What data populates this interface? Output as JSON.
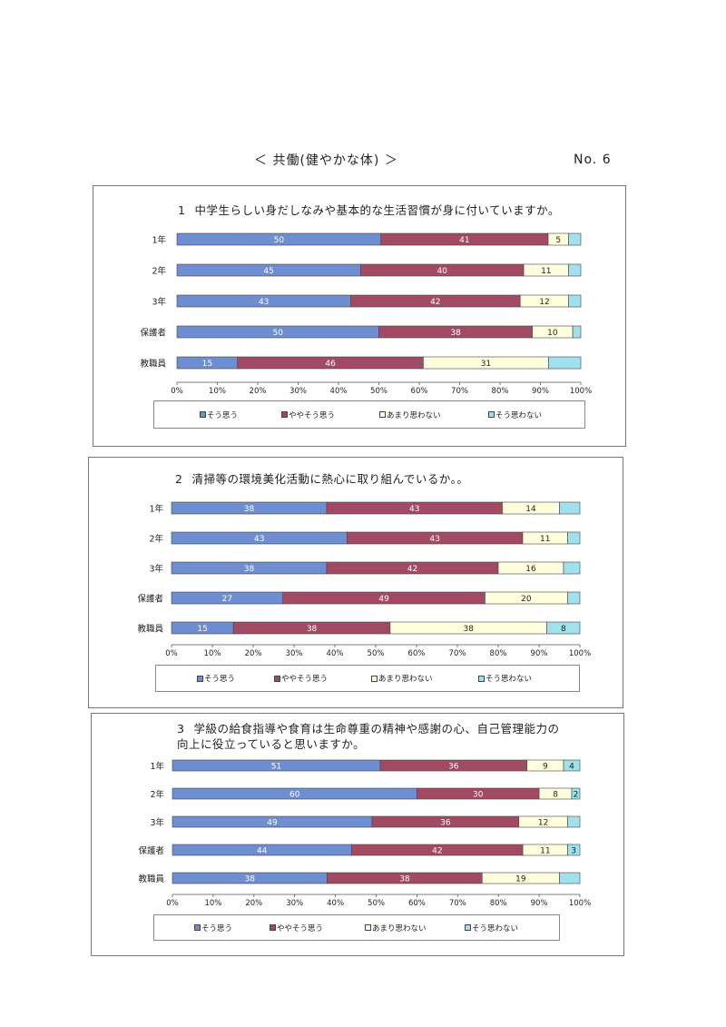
{
  "header": {
    "title": "＜ 共働(健やかな体) ＞",
    "page_number": "No. 6"
  },
  "legend_labels": [
    "そう思う",
    "ややそう思う",
    "あまり思わない",
    "そう思わない"
  ],
  "colors": {
    "series": [
      "#6f8dd1",
      "#a24a63",
      "#ffffdd",
      "#9fe1ec"
    ],
    "bar_stroke": "#444444",
    "axis": "#555555"
  },
  "panels": [
    {
      "number": "1",
      "question": "中学生らしい身だしなみや基本的な生活習慣が身に付いていますか。"
    },
    {
      "number": "2",
      "question": "清掃等の環境美化活動に熱心に取り組んでいるか。。"
    },
    {
      "number": "3",
      "question": "学級の給食指導や食育は生命尊重の精神や感謝の心、自己管理能力の",
      "question_line2": "向上に役立っていると思いますか。"
    }
  ],
  "chart_data": [
    {
      "type": "bar",
      "orientation": "horizontal",
      "stacked": true,
      "title": "1 中学生らしい身だしなみや基本的な生活習慣が身に付いていますか。",
      "categories": [
        "1年",
        "2年",
        "3年",
        "保護者",
        "教職員"
      ],
      "series": [
        {
          "name": "そう思う",
          "values": [
            50,
            45,
            43,
            50,
            15
          ]
        },
        {
          "name": "ややそう思う",
          "values": [
            41,
            40,
            42,
            38,
            46
          ]
        },
        {
          "name": "あまり思わない",
          "values": [
            5,
            11,
            12,
            10,
            31
          ]
        },
        {
          "name": "そう思わない",
          "values": [
            3,
            3,
            3,
            2,
            8
          ]
        }
      ],
      "data_labels": [
        [
          "50",
          "41",
          "5",
          ""
        ],
        [
          "45",
          "40",
          "11",
          ""
        ],
        [
          "43",
          "42",
          "12",
          ""
        ],
        [
          "50",
          "38",
          "10",
          ""
        ],
        [
          "15",
          "46",
          "31",
          ""
        ]
      ],
      "x_ticks": [
        "0%",
        "10%",
        "20%",
        "30%",
        "40%",
        "50%",
        "60%",
        "70%",
        "80%",
        "90%",
        "100%"
      ],
      "xlim": [
        0,
        100
      ],
      "legend": "bottom",
      "grid": false
    },
    {
      "type": "bar",
      "orientation": "horizontal",
      "stacked": true,
      "title": "2 清掃等の環境美化活動に熱心に取り組んでいるか。。",
      "categories": [
        "1年",
        "2年",
        "3年",
        "保護者",
        "教職員"
      ],
      "series": [
        {
          "name": "そう思う",
          "values": [
            38,
            43,
            38,
            27,
            15
          ]
        },
        {
          "name": "ややそう思う",
          "values": [
            43,
            43,
            42,
            49,
            38
          ]
        },
        {
          "name": "あまり思わない",
          "values": [
            14,
            11,
            16,
            20,
            38
          ]
        },
        {
          "name": "そう思わない",
          "values": [
            5,
            3,
            4,
            3,
            8
          ]
        }
      ],
      "data_labels": [
        [
          "38",
          "43",
          "14",
          ""
        ],
        [
          "43",
          "43",
          "11",
          ""
        ],
        [
          "38",
          "42",
          "16",
          ""
        ],
        [
          "27",
          "49",
          "20",
          ""
        ],
        [
          "15",
          "38",
          "38",
          "8"
        ]
      ],
      "x_ticks": [
        "0%",
        "10%",
        "20%",
        "30%",
        "40%",
        "50%",
        "60%",
        "70%",
        "80%",
        "90%",
        "100%"
      ],
      "xlim": [
        0,
        100
      ],
      "legend": "bottom",
      "grid": false
    },
    {
      "type": "bar",
      "orientation": "horizontal",
      "stacked": true,
      "title": "3 学級の給食指導や食育は生命尊重の精神や感謝の心、自己管理能力の向上に役立っていると思いますか。",
      "categories": [
        "1年",
        "2年",
        "3年",
        "保護者",
        "教職員"
      ],
      "series": [
        {
          "name": "そう思う",
          "values": [
            51,
            60,
            49,
            44,
            38
          ]
        },
        {
          "name": "ややそう思う",
          "values": [
            36,
            30,
            36,
            42,
            38
          ]
        },
        {
          "name": "あまり思わない",
          "values": [
            9,
            8,
            12,
            11,
            19
          ]
        },
        {
          "name": "そう思わない",
          "values": [
            4,
            2,
            3,
            3,
            5
          ]
        }
      ],
      "data_labels": [
        [
          "51",
          "36",
          "9",
          "4"
        ],
        [
          "60",
          "30",
          "8",
          "2"
        ],
        [
          "49",
          "36",
          "12",
          ""
        ],
        [
          "44",
          "42",
          "11",
          "3"
        ],
        [
          "38",
          "38",
          "19",
          ""
        ]
      ],
      "x_ticks": [
        "0%",
        "10%",
        "20%",
        "30%",
        "40%",
        "50%",
        "60%",
        "70%",
        "80%",
        "90%",
        "100%"
      ],
      "xlim": [
        0,
        100
      ],
      "legend": "bottom",
      "grid": false
    }
  ]
}
